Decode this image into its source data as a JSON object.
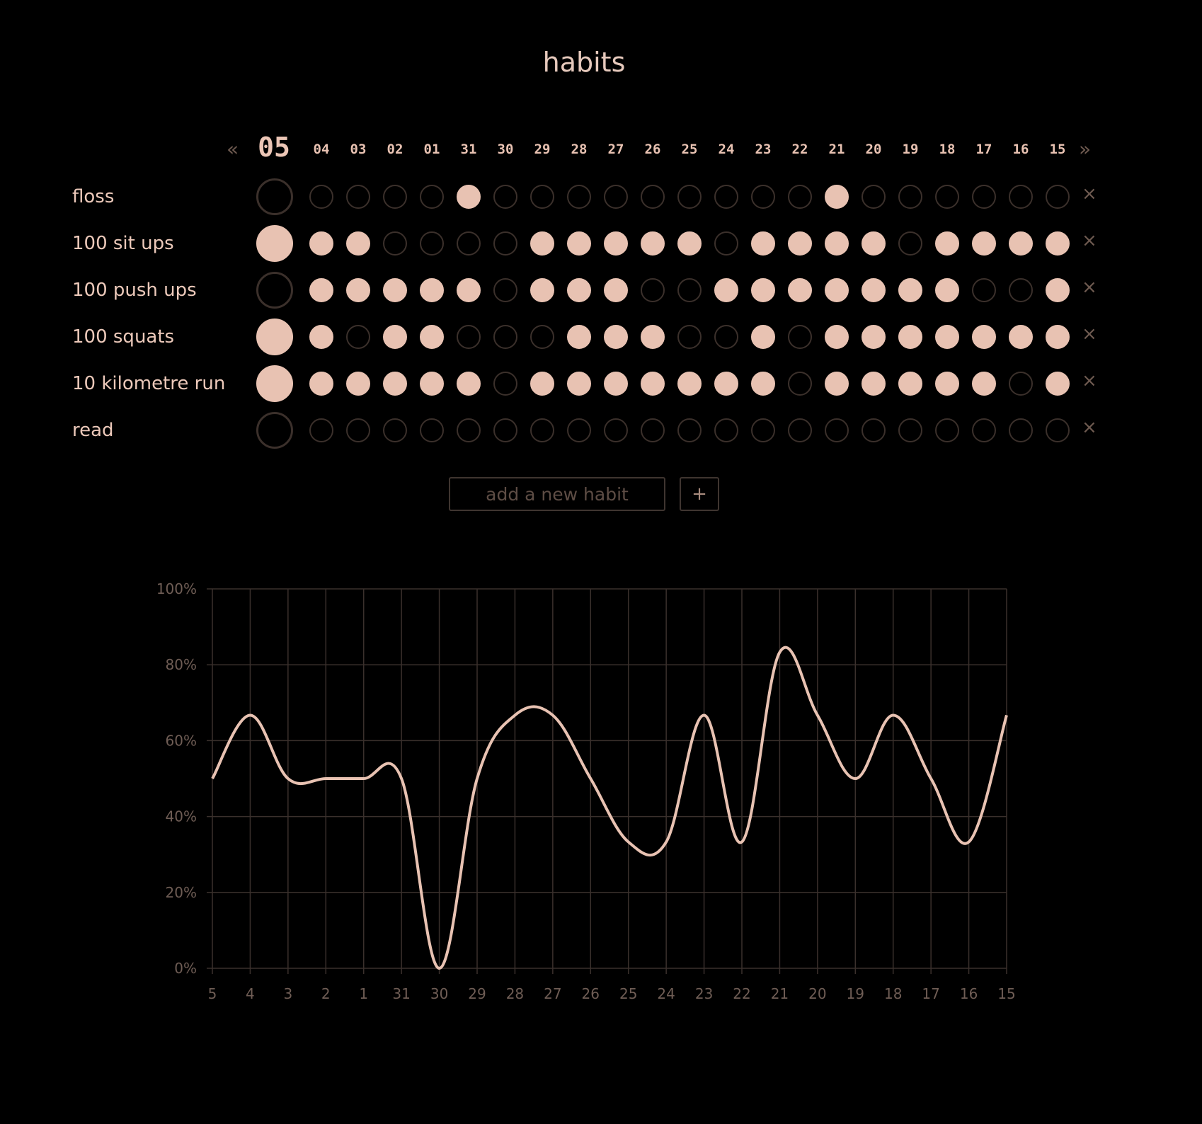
{
  "app": {
    "title": "habits"
  },
  "dates": {
    "prev_label": "«",
    "next_label": "»",
    "today": "05",
    "others": [
      "04",
      "03",
      "02",
      "01",
      "31",
      "30",
      "29",
      "28",
      "27",
      "26",
      "25",
      "24",
      "23",
      "22",
      "21",
      "20",
      "19",
      "18",
      "17",
      "16",
      "15"
    ]
  },
  "remove_label": "×",
  "habits": [
    {
      "name": "floss",
      "done": [
        0,
        0,
        0,
        0,
        0,
        1,
        0,
        0,
        0,
        0,
        0,
        0,
        0,
        0,
        0,
        1,
        0,
        0,
        0,
        0,
        0,
        0
      ]
    },
    {
      "name": "100 sit ups",
      "done": [
        1,
        1,
        1,
        0,
        0,
        0,
        0,
        1,
        1,
        1,
        1,
        1,
        0,
        1,
        1,
        1,
        1,
        0,
        1,
        1,
        1,
        1
      ]
    },
    {
      "name": "100 push ups",
      "done": [
        0,
        1,
        1,
        1,
        1,
        1,
        0,
        1,
        1,
        1,
        0,
        0,
        1,
        1,
        1,
        1,
        1,
        1,
        1,
        0,
        0,
        1
      ]
    },
    {
      "name": "100 squats",
      "done": [
        1,
        1,
        0,
        1,
        1,
        0,
        0,
        0,
        1,
        1,
        1,
        0,
        0,
        1,
        0,
        1,
        1,
        1,
        1,
        1,
        1,
        1
      ]
    },
    {
      "name": "10 kilometre run",
      "done": [
        1,
        1,
        1,
        1,
        1,
        1,
        0,
        1,
        1,
        1,
        1,
        1,
        1,
        1,
        0,
        1,
        1,
        1,
        1,
        1,
        0,
        1
      ]
    },
    {
      "name": "read",
      "done": [
        0,
        0,
        0,
        0,
        0,
        0,
        0,
        0,
        0,
        0,
        0,
        0,
        0,
        0,
        0,
        0,
        0,
        0,
        0,
        0,
        0,
        0
      ]
    }
  ],
  "add_habit": {
    "placeholder": "add a new habit",
    "value": "",
    "button_label": "+"
  },
  "colors": {
    "accent": "#e8c2b2",
    "background": "#000000",
    "muted": "#3b302b",
    "grid": "#3a302c"
  },
  "chart_data": {
    "type": "line",
    "categories": [
      "5",
      "4",
      "3",
      "2",
      "1",
      "31",
      "30",
      "29",
      "28",
      "27",
      "26",
      "25",
      "24",
      "23",
      "22",
      "21",
      "20",
      "19",
      "18",
      "17",
      "16",
      "15"
    ],
    "series": [
      {
        "values": [
          50,
          66.7,
          50,
          50,
          50,
          50,
          0,
          50,
          66.7,
          66.7,
          50,
          33.3,
          33.3,
          66.7,
          33.3,
          83.3,
          66.7,
          50,
          66.7,
          50,
          33.3,
          66.7
        ]
      }
    ],
    "y_ticks": [
      "0%",
      "20%",
      "40%",
      "60%",
      "80%",
      "100%"
    ],
    "ylim": [
      0,
      100
    ],
    "grid": true
  }
}
